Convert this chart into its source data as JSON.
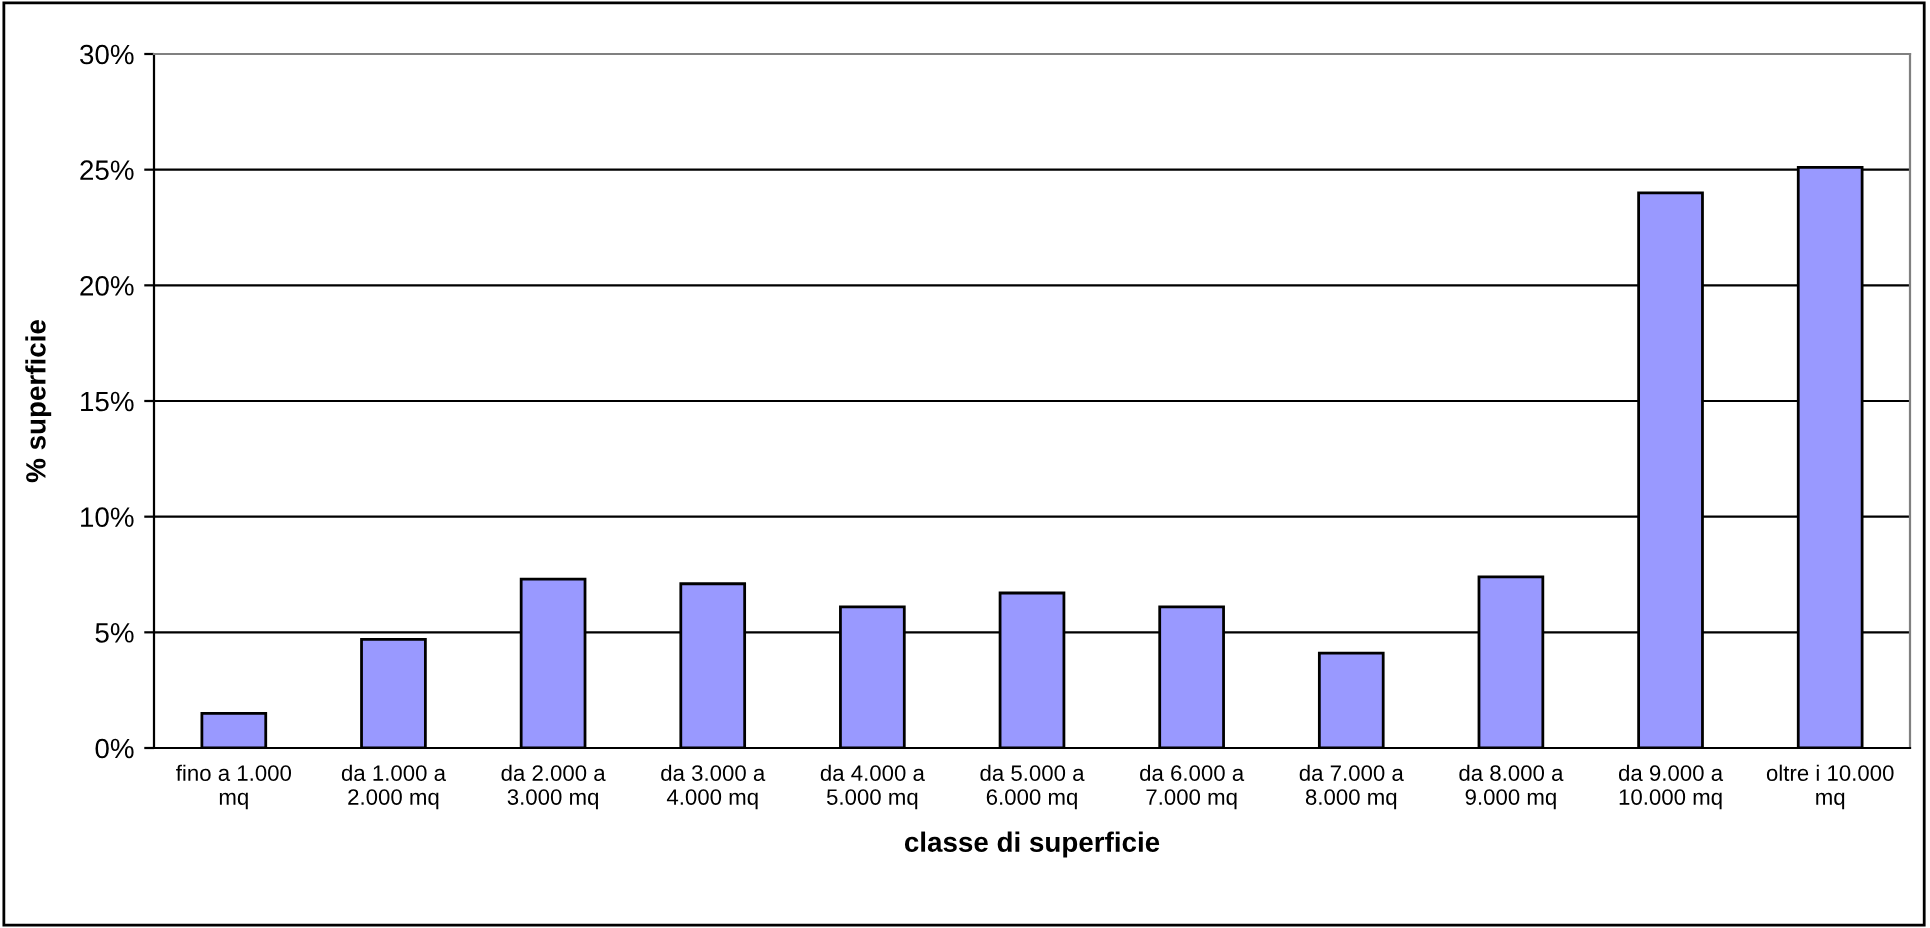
{
  "chart_data": {
    "type": "bar",
    "xlabel": "classe di superficie",
    "ylabel": "% superficie",
    "categories": [
      "fino a 1.000\nmq",
      "da 1.000 a\n2.000 mq",
      "da 2.000 a\n3.000 mq",
      "da 3.000 a\n4.000 mq",
      "da 4.000 a\n5.000 mq",
      "da 5.000 a\n6.000 mq",
      "da 6.000 a\n7.000 mq",
      "da 7.000 a\n8.000 mq",
      "da 8.000 a\n9.000 mq",
      "da 9.000 a\n10.000 mq",
      "oltre i 10.000\nmq"
    ],
    "values": [
      1.5,
      4.7,
      7.3,
      7.1,
      6.1,
      6.7,
      6.1,
      4.1,
      7.4,
      24.0,
      25.1
    ],
    "color": "#9999ff",
    "ylim": [
      0,
      30
    ],
    "yticks": [
      {
        "value": 0,
        "label": "0%"
      },
      {
        "value": 5,
        "label": "5%"
      },
      {
        "value": 10,
        "label": "10%"
      },
      {
        "value": 15,
        "label": "15%"
      },
      {
        "value": 20,
        "label": "20%"
      },
      {
        "value": 25,
        "label": "25%"
      },
      {
        "value": 30,
        "label": "30%"
      }
    ],
    "grid": "y",
    "legend": false
  }
}
